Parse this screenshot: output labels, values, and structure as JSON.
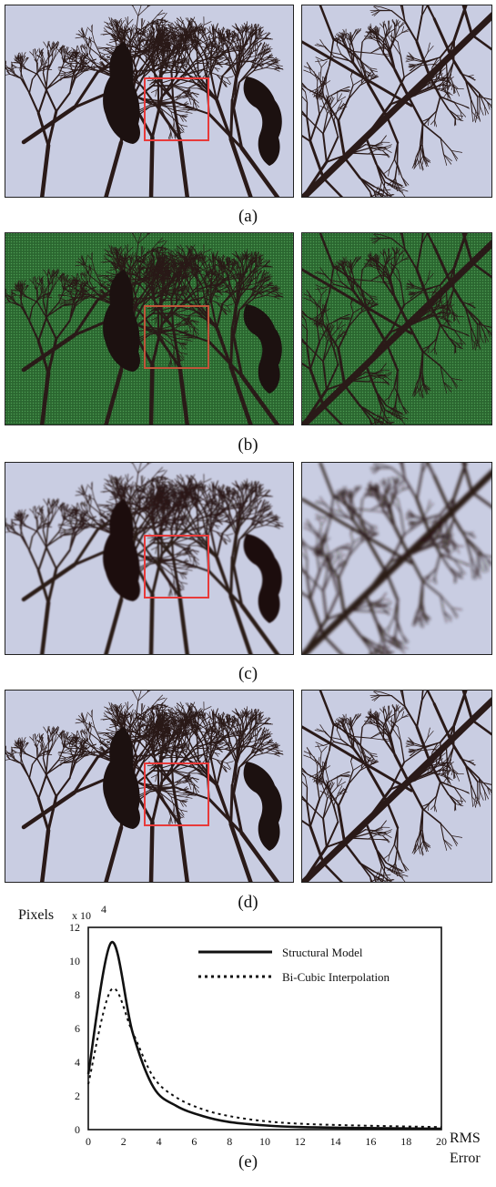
{
  "figure": {
    "rows": [
      {
        "id": "a",
        "caption": "(a)",
        "style": "sky",
        "show_box": true,
        "box_color": "#e83a3a"
      },
      {
        "id": "b",
        "caption": "(b)",
        "style": "mosaic",
        "show_box": true,
        "box_color": "#c0553a"
      },
      {
        "id": "c",
        "caption": "(c)",
        "style": "blur",
        "show_box": true,
        "box_color": "#e83a3a"
      },
      {
        "id": "d",
        "caption": "(d)",
        "style": "sharp",
        "show_box": true,
        "box_color": "#e83a3a"
      }
    ],
    "chart_caption": "(e)"
  },
  "colors": {
    "sky": "#c9cde2",
    "mosaic": "#2f6f34",
    "branch": "#2a1a18",
    "squirrel": "#1c1110"
  },
  "chart_data": {
    "type": "line",
    "ylabel": "Pixels",
    "y_multiplier": "x 10",
    "y_multiplier_exp": "4",
    "xlabel_line1": "RMS",
    "xlabel_line2": "Error",
    "xlim": [
      0,
      20
    ],
    "ylim": [
      0,
      12
    ],
    "xticks": [
      "0",
      "2",
      "4",
      "6",
      "8",
      "10",
      "12",
      "14",
      "16",
      "18",
      "20"
    ],
    "yticks": [
      "0",
      "2",
      "4",
      "6",
      "8",
      "10",
      "12"
    ],
    "legend_position": "top-right",
    "series": [
      {
        "name": "Structural Model",
        "style": "solid",
        "x": [
          0,
          1.3,
          2.5,
          3.7,
          5,
          6.5,
          8,
          10,
          12,
          15,
          20
        ],
        "y": [
          3.3,
          11.1,
          5.8,
          2.5,
          1.4,
          0.8,
          0.45,
          0.25,
          0.15,
          0.1,
          0.05
        ]
      },
      {
        "name": "Bi-Cubic Interpolation",
        "style": "dotted",
        "x": [
          0,
          1.3,
          2.5,
          3.7,
          5,
          6.5,
          8,
          10,
          12,
          15,
          20
        ],
        "y": [
          2.7,
          8.3,
          5.8,
          3.1,
          1.9,
          1.2,
          0.8,
          0.5,
          0.35,
          0.25,
          0.15
        ]
      }
    ]
  }
}
